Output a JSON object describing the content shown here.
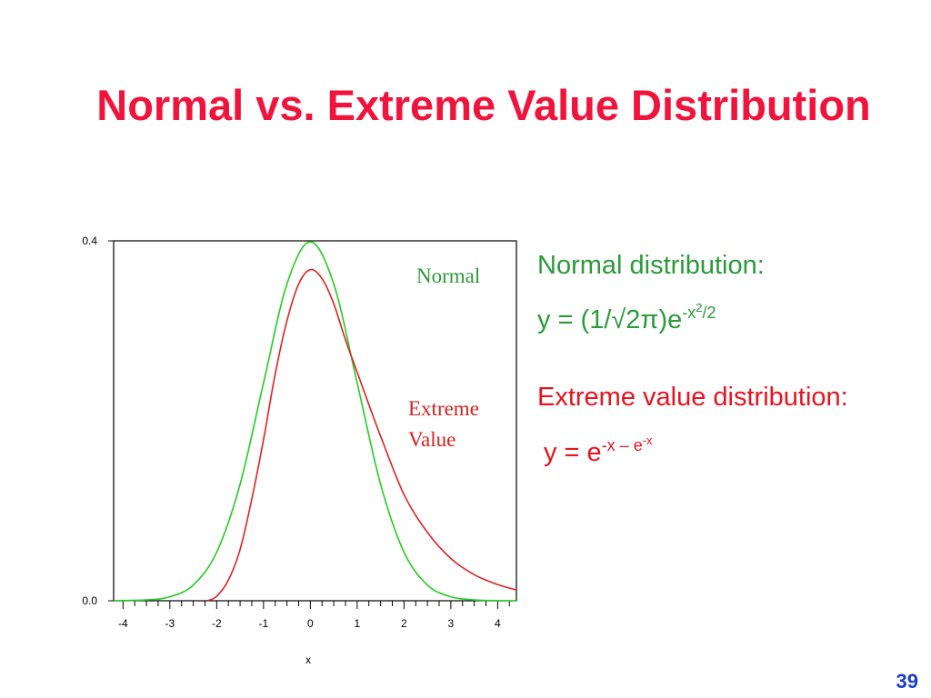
{
  "slide": {
    "title": "Normal vs. Extreme Value Distribution",
    "page_number": "39"
  },
  "formulas": {
    "normal": {
      "heading": "Normal distribution:",
      "prefix": "y = (1/√2π)e",
      "exp_base": "-x",
      "exp_inner": "2",
      "exp_tail": "/2"
    },
    "extreme": {
      "heading": "Extreme value distribution:",
      "prefix": "y = e",
      "exp_main": "-x – e",
      "exp_inner": "-x"
    }
  },
  "chart_data": {
    "type": "line",
    "xlabel": "x",
    "ylabel": "",
    "xlim": [
      -4.2,
      4.4
    ],
    "ylim": [
      0,
      0.4
    ],
    "x_ticks": [
      -4,
      -3,
      -2,
      -1,
      0,
      1,
      2,
      3,
      4
    ],
    "x_tick_labels": [
      "-4",
      "-3",
      "-2",
      "-1",
      "0",
      "1",
      "2",
      "3",
      "4"
    ],
    "y_ticks": [
      0,
      0.4
    ],
    "y_tick_labels": [
      "0.0",
      "0.4"
    ],
    "grid": false,
    "series": [
      {
        "name": "Normal",
        "color": "#22cc22",
        "x": [
          -4.2,
          -3.5,
          -3,
          -2.5,
          -2,
          -1.5,
          -1,
          -0.5,
          0,
          0.5,
          1,
          1.5,
          2,
          2.5,
          3,
          3.5,
          4,
          4.4
        ],
        "y": [
          0.0001,
          0.0009,
          0.0044,
          0.0175,
          0.054,
          0.1295,
          0.242,
          0.352,
          0.3989,
          0.352,
          0.242,
          0.1295,
          0.054,
          0.0175,
          0.0044,
          0.0009,
          0.0001,
          0.0
        ]
      },
      {
        "name": "Extreme Value",
        "color": "#dd2222",
        "x": [
          -2.2,
          -2,
          -1.75,
          -1.5,
          -1.25,
          -1,
          -0.75,
          -0.5,
          -0.25,
          0,
          0.25,
          0.5,
          0.75,
          1,
          1.25,
          1.5,
          2,
          2.5,
          3,
          3.5,
          4,
          4.4
        ],
        "y": [
          0.0,
          0.005,
          0.023,
          0.057,
          0.113,
          0.179,
          0.252,
          0.311,
          0.352,
          0.368,
          0.358,
          0.33,
          0.29,
          0.254,
          0.218,
          0.183,
          0.118,
          0.076,
          0.047,
          0.029,
          0.018,
          0.012
        ]
      }
    ],
    "annotations": {
      "normal_label": "Normal",
      "extreme_label_line1": "Extreme",
      "extreme_label_line2": "Value"
    }
  }
}
